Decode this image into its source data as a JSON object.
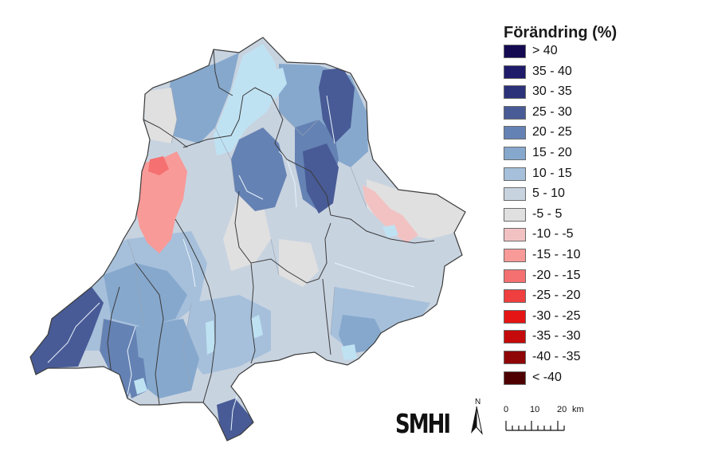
{
  "legend": {
    "title": "Förändring (%)",
    "classes": [
      {
        "label": "> 40",
        "color": "#130a52"
      },
      {
        "label": "35 - 40",
        "color": "#1f1b6a"
      },
      {
        "label": "30 - 35",
        "color": "#2c3279"
      },
      {
        "label": "25 - 30",
        "color": "#485b96"
      },
      {
        "label": "20 - 25",
        "color": "#6582b4"
      },
      {
        "label": "15 - 20",
        "color": "#86a8cd"
      },
      {
        "label": "10 - 15",
        "color": "#a6c0db"
      },
      {
        "label": "5 - 10",
        "color": "#c8d3e0"
      },
      {
        "label": "-5 - 5",
        "color": "#e0e0e0"
      },
      {
        "label": "-10 - -5",
        "color": "#f2c2c2"
      },
      {
        "label": "-15 - -10",
        "color": "#f89a98"
      },
      {
        "label": "-20 - -15",
        "color": "#f57070"
      },
      {
        "label": "-25 - -20",
        "color": "#ef3f3f"
      },
      {
        "label": "-30 - -25",
        "color": "#e51515"
      },
      {
        "label": "-35 - -30",
        "color": "#c40a0a"
      },
      {
        "label": "-40 - -35",
        "color": "#8e0606"
      },
      {
        "label": "< -40",
        "color": "#4e0000"
      }
    ]
  },
  "logo": {
    "text": "SMHI"
  },
  "north_arrow": {
    "label": "N"
  },
  "scale_bar": {
    "ticks": [
      "0",
      "10",
      "20"
    ],
    "unit": "km"
  },
  "colors": {
    "lake": "#bfe2f3",
    "border": "#3b3b3b",
    "river": "#e8f4fb"
  }
}
